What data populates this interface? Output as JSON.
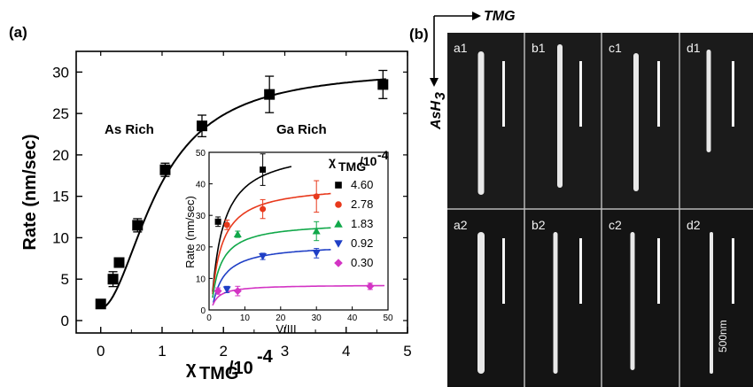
{
  "panel_a_label": "(a)",
  "panel_b_label": "(b)",
  "chart_data": [
    {
      "type": "scatter",
      "x": [
        0.0,
        0.2,
        0.3,
        0.6,
        1.05,
        1.65,
        2.75,
        4.6
      ],
      "y": [
        2.0,
        5.0,
        7.0,
        11.5,
        18.2,
        23.5,
        27.3,
        28.5
      ],
      "yerr": [
        0.3,
        0.9,
        0.5,
        0.8,
        0.8,
        1.3,
        2.2,
        1.7
      ],
      "fit_curve": "saturating fit (solid line)",
      "xlabel_main": "χ",
      "xlabel_sub": "TMG",
      "xlabel_rest": "/10",
      "xlabel_exp": "-4",
      "ylabel": "Rate (nm/sec)",
      "xlim": [
        -0.4,
        5.0
      ],
      "ylim": [
        -1.5,
        32.5
      ],
      "xticks": [
        "0",
        "1",
        "2",
        "3",
        "4",
        "5"
      ],
      "yticks": [
        "0",
        "5",
        "10",
        "15",
        "20",
        "25",
        "30"
      ],
      "annotations": [
        "As Rich",
        "Ga Rich"
      ],
      "marker": "square",
      "grid": false
    },
    {
      "type": "scatter",
      "inset": true,
      "xlabel": "V/III",
      "ylabel": "Rate (nm/sec)",
      "xlim": [
        0,
        50
      ],
      "ylim": [
        0,
        50
      ],
      "xticks": [
        "0",
        "10",
        "20",
        "30",
        "40",
        "50"
      ],
      "yticks": [
        "0",
        "10",
        "20",
        "30",
        "40",
        "50"
      ],
      "legend_title_main": "χ",
      "legend_title_sub": "TMG",
      "legend_title_rest": "/10",
      "legend_title_exp": "-4",
      "legend_position": "right",
      "series": [
        {
          "name": "4.60",
          "color": "#000000",
          "marker": "square",
          "x": [
            2.5,
            15
          ],
          "y": [
            28,
            44.5
          ],
          "yerr": [
            1.5,
            5
          ]
        },
        {
          "name": "2.78",
          "color": "#e8391c",
          "marker": "circle",
          "x": [
            5,
            15,
            30
          ],
          "y": [
            27,
            32,
            36
          ],
          "yerr": [
            1.5,
            3,
            5
          ]
        },
        {
          "name": "1.83",
          "color": "#11a84a",
          "marker": "triangle-up",
          "x": [
            8,
            30
          ],
          "y": [
            24,
            25
          ],
          "yerr": [
            1,
            3
          ]
        },
        {
          "name": "0.92",
          "color": "#1f3fc6",
          "marker": "triangle-down",
          "x": [
            5,
            15,
            30
          ],
          "y": [
            6.5,
            17,
            18
          ],
          "yerr": [
            1,
            1,
            1.5
          ]
        },
        {
          "name": "0.30",
          "color": "#d334c4",
          "marker": "diamond",
          "x": [
            2.5,
            8,
            45
          ],
          "y": [
            6,
            6,
            7.5
          ],
          "yerr": [
            1,
            1.5,
            1
          ]
        }
      ]
    }
  ],
  "micrograph": {
    "arrow_x_label": "TMG",
    "arrow_y_label": "AsH",
    "arrow_y_sub": "3",
    "scale_bar_label": "500nm",
    "images": [
      "a1",
      "b1",
      "c1",
      "d1",
      "a2",
      "b2",
      "c2",
      "d2"
    ]
  }
}
